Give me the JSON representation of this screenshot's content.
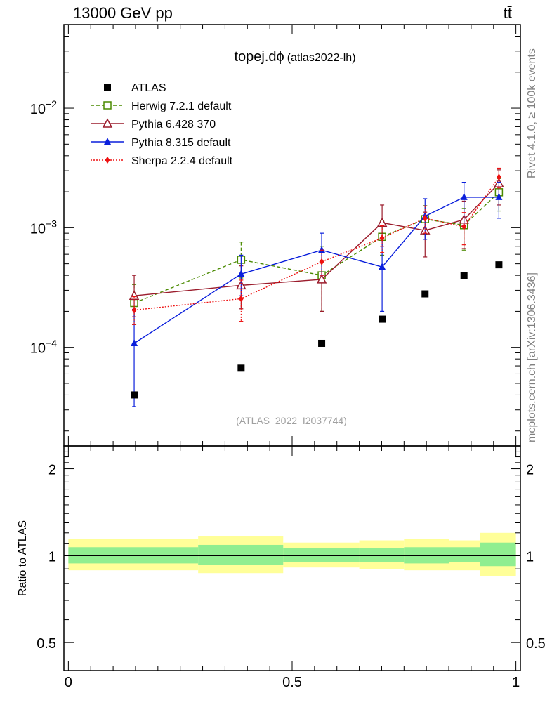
{
  "header": {
    "left": "13000 GeV pp",
    "right": "tt̄"
  },
  "side_labels": {
    "rivet": "Rivet 4.1.0, ≥ 100k events",
    "source": "mcplots.cern.ch [arXiv:1306.3436]"
  },
  "chart_data": [
    {
      "type": "line",
      "title": "topej.dϕ (atlas2022-lh)",
      "title_main": "topej.dϕ",
      "title_sub": "(atlas2022-lh)",
      "watermark": "(ATLAS_2022_I2037744)",
      "yscale": "log",
      "xlim": [
        -0.01,
        1.01
      ],
      "ylim": [
        1.5e-05,
        0.05
      ],
      "ytick_labels": [
        {
          "mantissa": "10",
          "exp": "−2",
          "value": 0.01
        },
        {
          "mantissa": "10",
          "exp": "−3",
          "value": 0.001
        },
        {
          "mantissa": "10",
          "exp": "−4",
          "value": 0.0001
        }
      ],
      "legend_position": "top-left",
      "series": [
        {
          "name": "ATLAS",
          "color": "#000000",
          "marker": "square-filled",
          "line": "none",
          "x": [
            0.147,
            0.386,
            0.566,
            0.701,
            0.797,
            0.884,
            0.962
          ],
          "y": [
            4e-05,
            6.7e-05,
            0.000108,
            0.000172,
            0.00028,
            0.0004,
            0.00049
          ]
        },
        {
          "name": "Herwig 7.2.1 default",
          "color": "#4a8a00",
          "marker": "square-open",
          "line": "dashed",
          "x": [
            0.147,
            0.386,
            0.566,
            0.701,
            0.797,
            0.884,
            0.962
          ],
          "y": [
            0.000235,
            0.00054,
            0.0004,
            0.00084,
            0.00118,
            0.00105,
            0.00198
          ],
          "yerr_lo": [
            8e-05,
            0.00016,
            0.0002,
            0.00025,
            0.0003,
            0.0004,
            0.0006
          ],
          "yerr_hi": [
            0.0001,
            0.00022,
            0.0003,
            0.0003,
            0.00035,
            0.0004,
            0.0006
          ]
        },
        {
          "name": "Pythia 6.428 370",
          "color": "#9b1c2c",
          "marker": "triangle-open",
          "line": "solid",
          "x": [
            0.147,
            0.386,
            0.566,
            0.701,
            0.797,
            0.884,
            0.962
          ],
          "y": [
            0.00027,
            0.00033,
            0.00037,
            0.0011,
            0.00095,
            0.00117,
            0.00235
          ],
          "yerr_lo": [
            9e-05,
            0.00012,
            0.00017,
            0.0004,
            0.00038,
            0.0005,
            0.0008
          ],
          "yerr_hi": [
            0.00013,
            0.00015,
            0.00028,
            0.00045,
            0.0004,
            0.0005,
            0.0007
          ]
        },
        {
          "name": "Pythia 8.315 default",
          "color": "#0a1fdc",
          "marker": "triangle-filled",
          "line": "solid",
          "step": true,
          "x": [
            0.147,
            0.386,
            0.566,
            0.701,
            0.797,
            0.884,
            0.962
          ],
          "y": [
            0.000108,
            0.00041,
            0.00065,
            0.00047,
            0.00125,
            0.0018,
            0.0018
          ],
          "yerr_lo": [
            7.6e-05,
            0.00014,
            0.00025,
            0.00027,
            0.00045,
            0.00075,
            0.0006
          ],
          "yerr_hi": [
            0.0001,
            0.00018,
            0.00025,
            0.00035,
            0.0005,
            0.0006,
            0.0006
          ]
        },
        {
          "name": "Sherpa 2.2.4 default",
          "color": "#ee1111",
          "marker": "diamond-filled",
          "line": "dotted",
          "x": [
            0.147,
            0.386,
            0.566,
            0.701,
            0.797,
            0.884,
            0.962
          ],
          "y": [
            0.000205,
            0.000255,
            0.00052,
            0.00082,
            0.0012,
            0.00102,
            0.00265
          ],
          "yerr_lo": [
            5e-05,
            9e-05,
            0.00012,
            0.0002,
            0.0003,
            0.0003,
            0.0005
          ],
          "yerr_hi": [
            6e-05,
            0.00011,
            0.00013,
            0.00022,
            0.00032,
            0.00032,
            0.0005
          ]
        }
      ]
    },
    {
      "type": "area",
      "ylabel": "Ratio to ATLAS",
      "xlim": [
        -0.01,
        1.01
      ],
      "ylim": [
        0.4,
        2.4
      ],
      "yscale": "log",
      "reference_line": 1,
      "ytick_labels": [
        {
          "label": "2",
          "value": 2
        },
        {
          "label": "1",
          "value": 1
        },
        {
          "label": "0.5",
          "value": 0.5
        }
      ],
      "xtick_labels": [
        {
          "label": "0",
          "value": 0
        },
        {
          "label": "0.5",
          "value": 0.5
        },
        {
          "label": "1",
          "value": 1
        }
      ],
      "bands": [
        {
          "x0": 0.0,
          "x1": 0.29,
          "stat_lo": 0.94,
          "stat_hi": 1.07,
          "tot_lo": 0.89,
          "tot_hi": 1.14
        },
        {
          "x0": 0.29,
          "x1": 0.48,
          "stat_lo": 0.93,
          "stat_hi": 1.09,
          "tot_lo": 0.87,
          "tot_hi": 1.17
        },
        {
          "x0": 0.48,
          "x1": 0.65,
          "stat_lo": 0.95,
          "stat_hi": 1.06,
          "tot_lo": 0.91,
          "tot_hi": 1.11
        },
        {
          "x0": 0.65,
          "x1": 0.75,
          "stat_lo": 0.95,
          "stat_hi": 1.06,
          "tot_lo": 0.9,
          "tot_hi": 1.13
        },
        {
          "x0": 0.75,
          "x1": 0.85,
          "stat_lo": 0.94,
          "stat_hi": 1.07,
          "tot_lo": 0.89,
          "tot_hi": 1.14
        },
        {
          "x0": 0.85,
          "x1": 0.92,
          "stat_lo": 0.95,
          "stat_hi": 1.07,
          "tot_lo": 0.89,
          "tot_hi": 1.13
        },
        {
          "x0": 0.92,
          "x1": 1.0,
          "stat_lo": 0.92,
          "stat_hi": 1.11,
          "tot_lo": 0.85,
          "tot_hi": 1.2
        }
      ],
      "band_colors": {
        "stat": "#90ee90",
        "total": "#ffff99"
      }
    }
  ]
}
